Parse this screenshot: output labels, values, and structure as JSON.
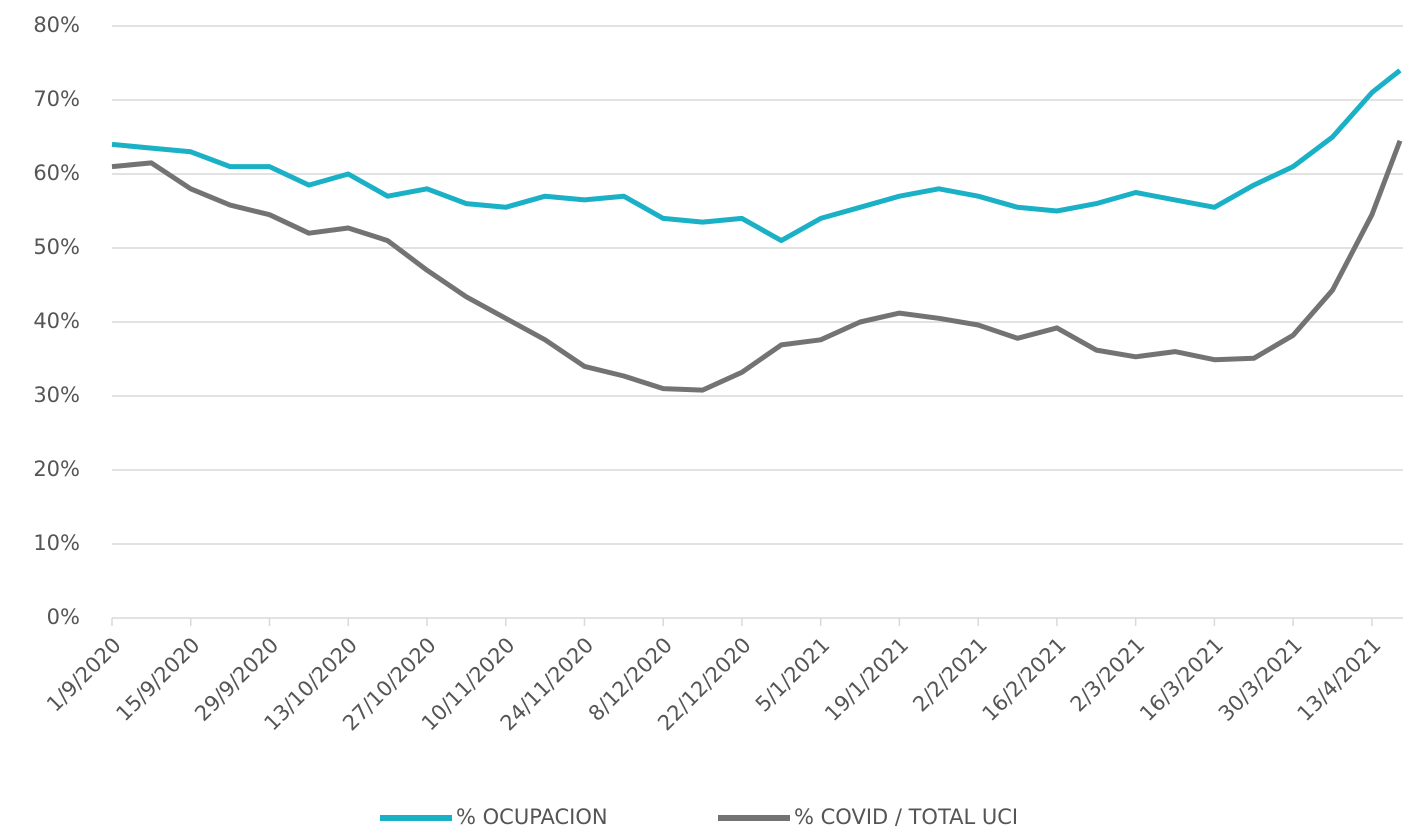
{
  "chart_data": {
    "type": "line",
    "x": [
      "2020-09-01",
      "2020-09-08",
      "2020-09-15",
      "2020-09-22",
      "2020-09-29",
      "2020-10-06",
      "2020-10-13",
      "2020-10-20",
      "2020-10-27",
      "2020-11-03",
      "2020-11-10",
      "2020-11-17",
      "2020-11-24",
      "2020-12-01",
      "2020-12-08",
      "2020-12-15",
      "2020-12-22",
      "2020-12-29",
      "2021-01-05",
      "2021-01-12",
      "2021-01-19",
      "2021-01-26",
      "2021-02-02",
      "2021-02-09",
      "2021-02-16",
      "2021-02-23",
      "2021-03-02",
      "2021-03-09",
      "2021-03-16",
      "2021-03-23",
      "2021-03-30",
      "2021-04-06",
      "2021-04-13",
      "2021-04-18"
    ],
    "series": [
      {
        "name": "% OCUPACION",
        "color": "#1ab0c6",
        "values": [
          64,
          63.5,
          63,
          61,
          61,
          58.5,
          60,
          57,
          58,
          56,
          55.5,
          57,
          56.5,
          57,
          54,
          53.5,
          54,
          51,
          54,
          55.5,
          57,
          58,
          57,
          55.5,
          55,
          56,
          57.5,
          56.5,
          55.5,
          58.5,
          61,
          65,
          71,
          74
        ]
      },
      {
        "name": "% COVID / TOTAL UCI",
        "color": "#737373",
        "values": [
          61,
          61.5,
          58,
          55.8,
          54.5,
          52,
          52.7,
          51,
          47,
          43.4,
          40.5,
          37.6,
          34,
          32.7,
          31,
          30.8,
          33.2,
          36.9,
          37.6,
          40,
          41.2,
          40.5,
          39.6,
          37.8,
          39.2,
          36.2,
          35.3,
          36,
          34.9,
          35.1,
          38.2,
          44.3,
          54.5,
          64.5
        ]
      }
    ],
    "xlim": [
      "2020-09-01",
      "2021-04-18"
    ],
    "xticks": [
      {
        "value": "2020-09-01",
        "label": "1/9/2020"
      },
      {
        "value": "2020-09-15",
        "label": "15/9/2020"
      },
      {
        "value": "2020-09-29",
        "label": "29/9/2020"
      },
      {
        "value": "2020-10-13",
        "label": "13/10/2020"
      },
      {
        "value": "2020-10-27",
        "label": "27/10/2020"
      },
      {
        "value": "2020-11-10",
        "label": "10/11/2020"
      },
      {
        "value": "2020-11-24",
        "label": "24/11/2020"
      },
      {
        "value": "2020-12-08",
        "label": "8/12/2020"
      },
      {
        "value": "2020-12-22",
        "label": "22/12/2020"
      },
      {
        "value": "2021-01-05",
        "label": "5/1/2021"
      },
      {
        "value": "2021-01-19",
        "label": "19/1/2021"
      },
      {
        "value": "2021-02-02",
        "label": "2/2/2021"
      },
      {
        "value": "2021-02-16",
        "label": "16/2/2021"
      },
      {
        "value": "2021-03-02",
        "label": "2/3/2021"
      },
      {
        "value": "2021-03-16",
        "label": "16/3/2021"
      },
      {
        "value": "2021-03-30",
        "label": "30/3/2021"
      },
      {
        "value": "2021-04-13",
        "label": "13/4/2021"
      }
    ],
    "ylim": [
      0,
      80
    ],
    "yticks": [
      {
        "value": 0,
        "label": "0%"
      },
      {
        "value": 10,
        "label": "10%"
      },
      {
        "value": 20,
        "label": "20%"
      },
      {
        "value": 30,
        "label": "30%"
      },
      {
        "value": 40,
        "label": "40%"
      },
      {
        "value": 50,
        "label": "50%"
      },
      {
        "value": 60,
        "label": "60%"
      },
      {
        "value": 70,
        "label": "70%"
      },
      {
        "value": 80,
        "label": "80%"
      }
    ],
    "grid": true,
    "legend": "bottom"
  }
}
